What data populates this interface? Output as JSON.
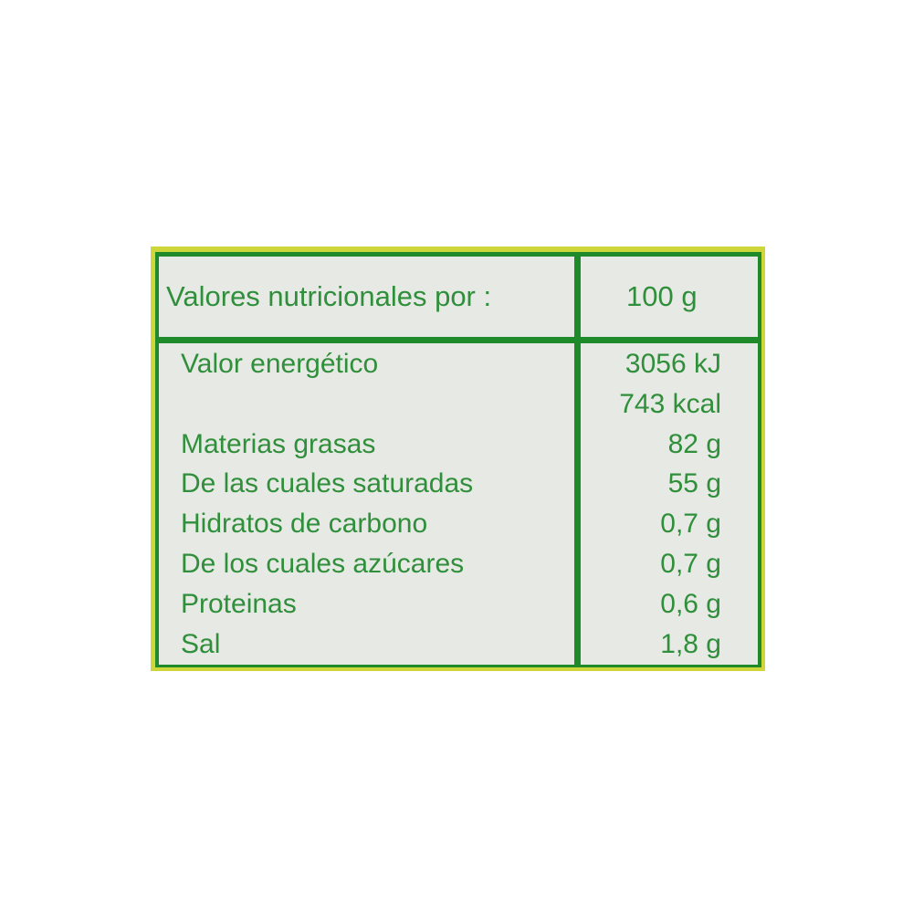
{
  "header": {
    "label": "Valores nutricionales por :",
    "value": "100 g"
  },
  "rows": [
    {
      "label": "Valor energético",
      "value": "3056 kJ"
    },
    {
      "label": "",
      "value": "743 kcal"
    },
    {
      "label": "Materias grasas",
      "value": "82 g"
    },
    {
      "label": "De las cuales saturadas",
      "value": "55 g"
    },
    {
      "label": "Hidratos de carbono",
      "value": "0,7 g"
    },
    {
      "label": "De los cuales azúcares",
      "value": "0,7 g"
    },
    {
      "label": "Proteinas",
      "value": "0,6 g"
    },
    {
      "label": "Sal",
      "value": "1,8 g"
    }
  ],
  "colors": {
    "text": "#2f8f3a",
    "border": "#1f8a2a",
    "outer": "#cfd63a",
    "background": "#e7e9e5"
  }
}
